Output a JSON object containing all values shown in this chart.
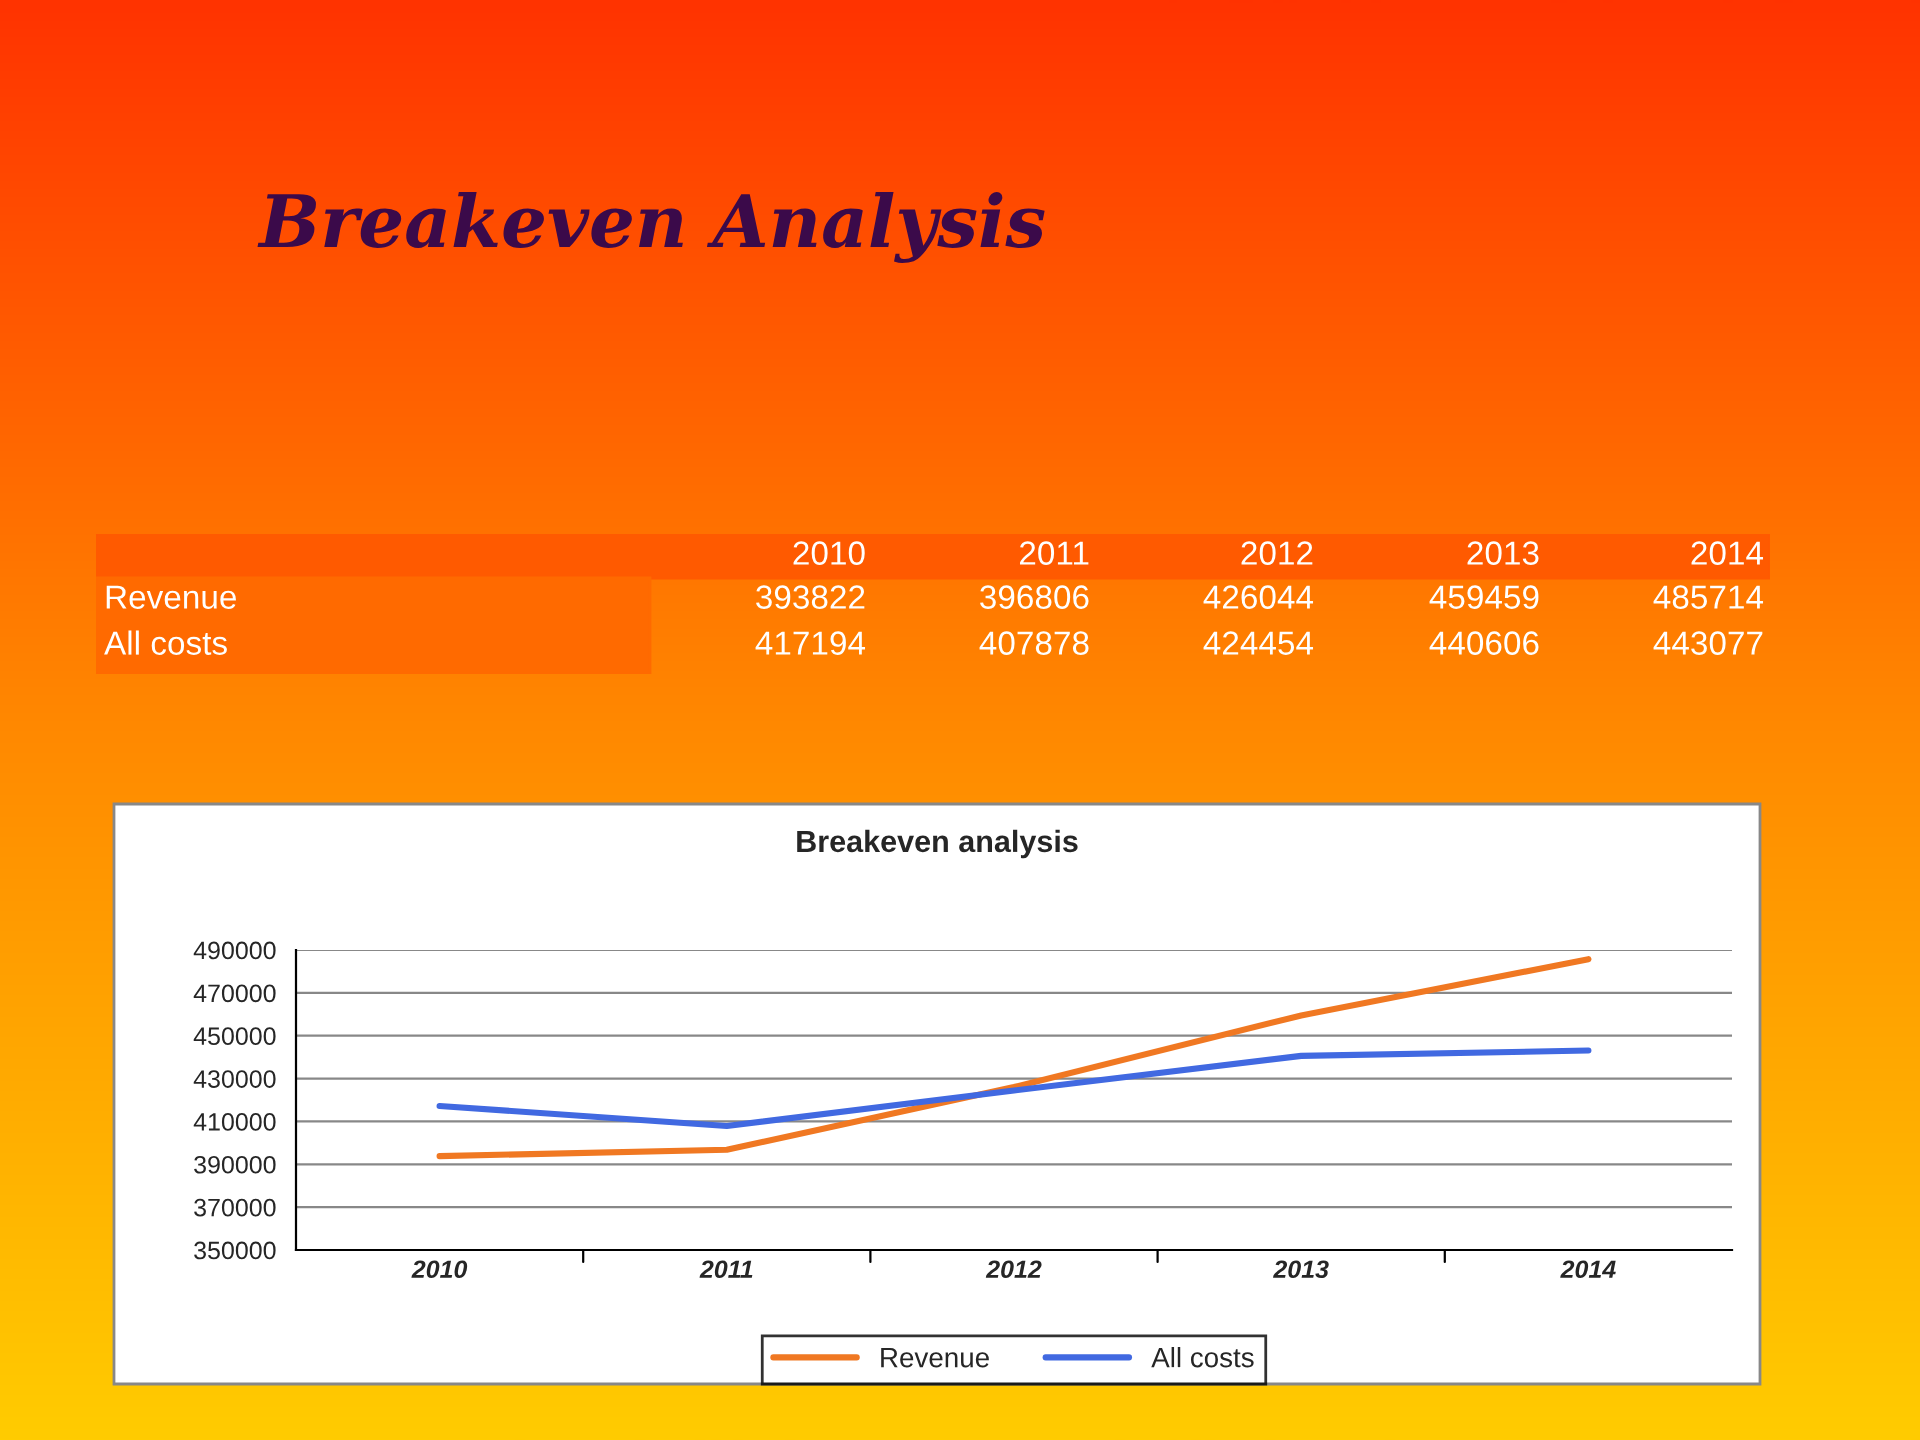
{
  "chart_data": {
    "type": "line",
    "title": "Breakeven Analysis",
    "subtitle": "Breakeven analysis",
    "annotations": [
      "Revenue",
      "393822",
      "396806",
      "426044",
      "459459",
      "485714",
      "All costs",
      "417194",
      "407878",
      "424454",
      "440606",
      "443077"
    ],
    "categories": [
      "2010",
      "2011",
      "2012",
      "2013",
      "2014"
    ],
    "series": [
      {
        "name": "Revenue",
        "color": "#f07822",
        "values": [
          393822,
          396806,
          426044,
          459459,
          485714
        ]
      },
      {
        "name": "All costs",
        "color": "#4169e1",
        "values": [
          417194,
          407878,
          424454,
          440606,
          443077
        ]
      }
    ],
    "ylim": [
      350000,
      490000
    ],
    "yticks": [
      350000,
      370000,
      390000,
      410000,
      430000,
      450000,
      470000,
      490000
    ],
    "grid": "y",
    "legend": "bottom",
    "marker": "none",
    "line_style": "solid"
  }
}
